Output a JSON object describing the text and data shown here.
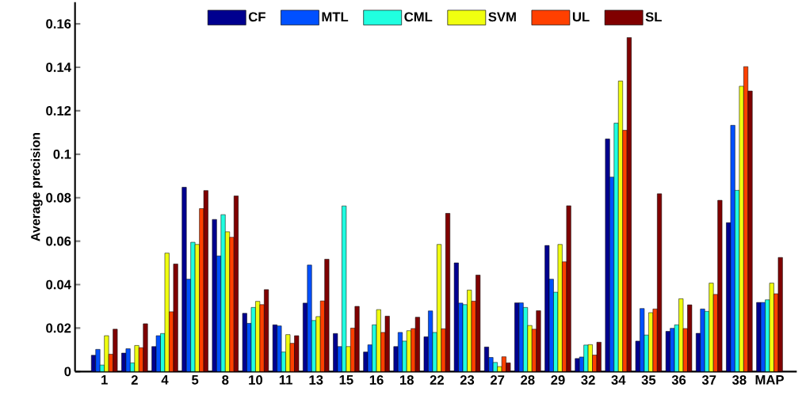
{
  "chart_data": {
    "type": "bar",
    "ylabel": "Average precision",
    "categories": [
      "1",
      "2",
      "4",
      "5",
      "8",
      "10",
      "11",
      "13",
      "15",
      "16",
      "18",
      "22",
      "23",
      "27",
      "28",
      "29",
      "32",
      "34",
      "35",
      "36",
      "37",
      "38",
      "MAP"
    ],
    "series": [
      {
        "name": "CF",
        "color": "#00008f",
        "values": [
          0.0075,
          0.0085,
          0.0115,
          0.0848,
          0.07,
          0.0268,
          0.0215,
          0.0315,
          0.0175,
          0.009,
          0.0115,
          0.016,
          0.05,
          0.0113,
          0.0316,
          0.058,
          0.006,
          0.107,
          0.014,
          0.0185,
          0.0176,
          0.0685,
          0.0318
        ]
      },
      {
        "name": "MTL",
        "color": "#0050ff",
        "values": [
          0.0102,
          0.0105,
          0.0165,
          0.0425,
          0.0532,
          0.0222,
          0.021,
          0.049,
          0.0115,
          0.0123,
          0.018,
          0.0279,
          0.0315,
          0.0065,
          0.0316,
          0.0425,
          0.0067,
          0.0895,
          0.029,
          0.0199,
          0.0288,
          0.1133,
          0.0318
        ]
      },
      {
        "name": "CML",
        "color": "#20ffe0",
        "values": [
          0.003,
          0.004,
          0.0175,
          0.0595,
          0.0722,
          0.0295,
          0.009,
          0.0235,
          0.0762,
          0.0215,
          0.014,
          0.018,
          0.0308,
          0.0042,
          0.0295,
          0.0365,
          0.0122,
          0.1143,
          0.0168,
          0.0215,
          0.0277,
          0.0834,
          0.033
        ]
      },
      {
        "name": "SVM",
        "color": "#f0ff10",
        "values": [
          0.0165,
          0.012,
          0.0545,
          0.0585,
          0.0643,
          0.0323,
          0.017,
          0.0253,
          0.0115,
          0.0285,
          0.0188,
          0.0585,
          0.0375,
          0.0023,
          0.0212,
          0.0585,
          0.0124,
          0.1337,
          0.0271,
          0.0335,
          0.0407,
          0.1313,
          0.0407
        ]
      },
      {
        "name": "UL",
        "color": "#ff4000",
        "values": [
          0.008,
          0.011,
          0.0275,
          0.075,
          0.0618,
          0.0308,
          0.013,
          0.0325,
          0.02,
          0.018,
          0.0198,
          0.0197,
          0.0324,
          0.0068,
          0.0195,
          0.0505,
          0.0076,
          0.111,
          0.0288,
          0.0198,
          0.0355,
          0.1403,
          0.0358
        ]
      },
      {
        "name": "SL",
        "color": "#800000",
        "values": [
          0.0195,
          0.022,
          0.0495,
          0.0833,
          0.0808,
          0.0377,
          0.0165,
          0.0517,
          0.03,
          0.0255,
          0.025,
          0.0728,
          0.0444,
          0.004,
          0.028,
          0.0763,
          0.0135,
          0.1537,
          0.0818,
          0.0307,
          0.0788,
          0.1291,
          0.0525
        ]
      }
    ],
    "ylim": [
      0,
      0.17
    ],
    "yticks": [
      0,
      0.02,
      0.04,
      0.06,
      0.08,
      0.1,
      0.12,
      0.14,
      0.16
    ],
    "legend": "top"
  }
}
